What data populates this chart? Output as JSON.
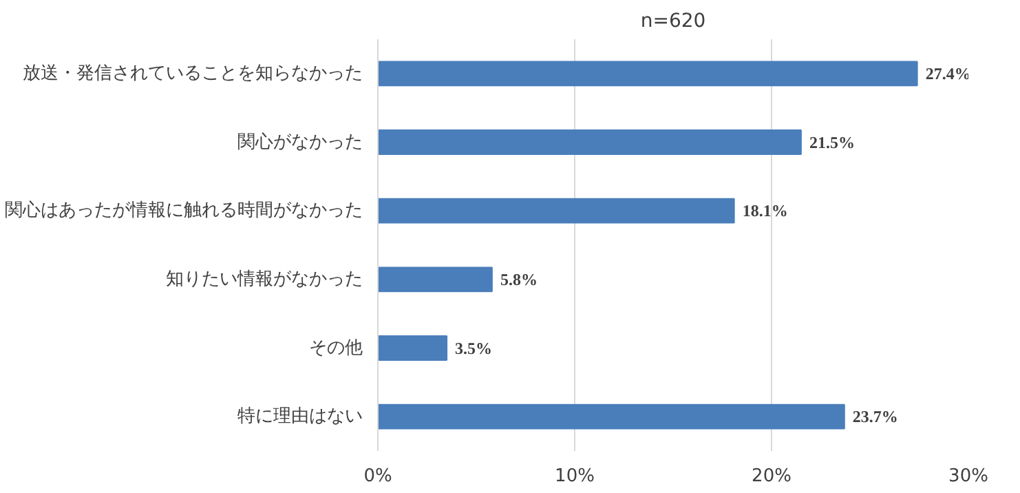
{
  "chart_data": {
    "type": "bar",
    "orientation": "horizontal",
    "title": "n=620",
    "categories": [
      "放送・発信されていることを知らなかった",
      "関心がなかった",
      "関心はあったが情報に触れる時間がなかった",
      "知りたい情報がなかった",
      "その他",
      "特に理由はない"
    ],
    "values": [
      27.4,
      21.5,
      18.1,
      5.8,
      3.5,
      23.7
    ],
    "value_labels": [
      "27.4%",
      "21.5%",
      "18.1%",
      "5.8%",
      "3.5%",
      "23.7%"
    ],
    "color": "#4a7ebb",
    "xlim": [
      0,
      30
    ],
    "xticks": [
      {
        "value": 0,
        "label": "0%"
      },
      {
        "value": 10,
        "label": "10%"
      },
      {
        "value": 20,
        "label": "20%"
      },
      {
        "value": 30,
        "label": "30%"
      }
    ],
    "grid": "x"
  }
}
